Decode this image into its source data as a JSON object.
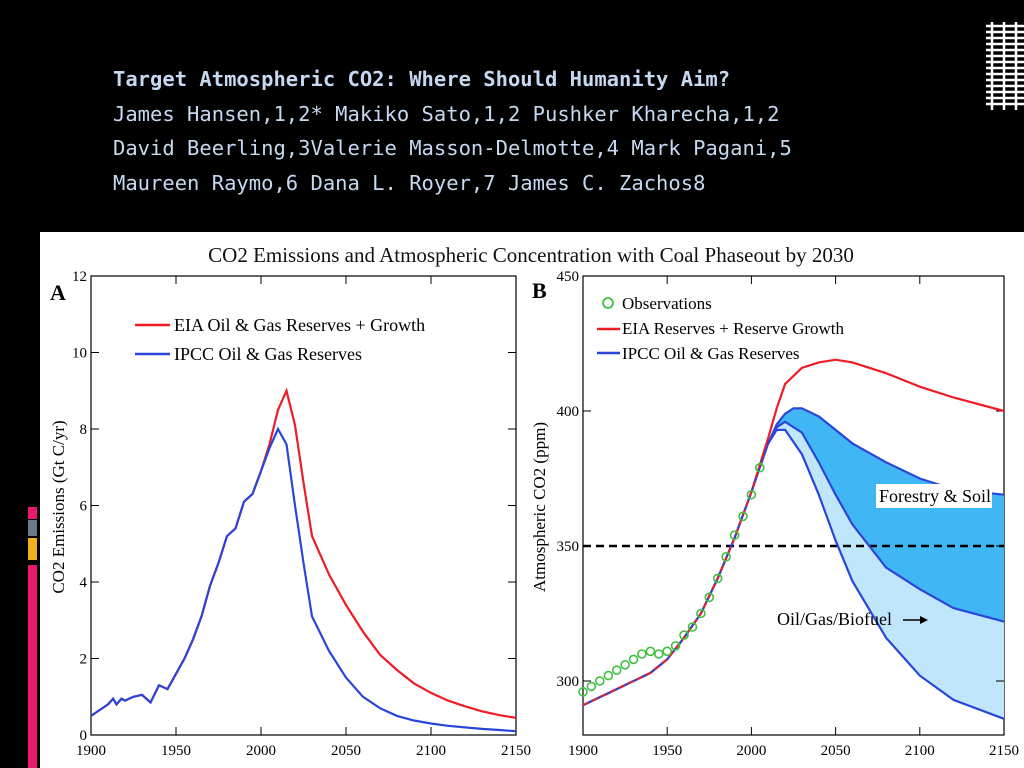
{
  "header": {
    "title": "Target Atmospheric CO2: Where Should Humanity Aim?",
    "authors": [
      "James Hansen,1,2* Makiko Sato,1,2 Pushker Kharecha,1,2",
      "David Beerling,3Valerie Masson-Delmotte,4 Mark Pagani,5",
      "Maureen Raymo,6 Dana L. Royer,7 James C. Zachos8"
    ]
  },
  "colors": {
    "red": "#ee1c25",
    "blue": "#2a46d8",
    "obs": "#3fbf3f",
    "band_dark": "#41b6f5",
    "band_light": "#bfe6fb",
    "title_text": "#c6d9f1"
  },
  "chart_data": [
    {
      "type": "line",
      "figure_title": "CO2 Emissions and Atmospheric Concentration with Coal Phaseout by 2030",
      "panel": "A",
      "ylabel": "CO2 Emissions (Gt C/yr)",
      "xlim": [
        1900,
        2150
      ],
      "ylim": [
        0,
        12
      ],
      "xticks": [
        "1900",
        "1950",
        "2000",
        "2050",
        "2100",
        "2150"
      ],
      "yticks": [
        "0",
        "2",
        "4",
        "6",
        "8",
        "10",
        "12"
      ],
      "legend": "top-left",
      "series": [
        {
          "name": "EIA Oil & Gas Reserves + Growth",
          "color": "red",
          "x": [
            1900,
            1905,
            1910,
            1913,
            1915,
            1918,
            1920,
            1925,
            1930,
            1935,
            1940,
            1945,
            1950,
            1955,
            1960,
            1965,
            1970,
            1975,
            1980,
            1985,
            1990,
            1995,
            2000,
            2005,
            2010,
            2015,
            2020,
            2025,
            2030,
            2040,
            2050,
            2060,
            2070,
            2080,
            2090,
            2100,
            2110,
            2120,
            2130,
            2140,
            2150
          ],
          "y": [
            0.5,
            0.65,
            0.8,
            0.95,
            0.8,
            0.95,
            0.9,
            1.0,
            1.05,
            0.85,
            1.3,
            1.2,
            1.6,
            2.0,
            2.5,
            3.1,
            3.9,
            4.5,
            5.2,
            5.4,
            6.1,
            6.3,
            6.9,
            7.6,
            8.5,
            9.0,
            8.1,
            6.6,
            5.2,
            4.2,
            3.4,
            2.7,
            2.1,
            1.7,
            1.35,
            1.1,
            0.9,
            0.75,
            0.62,
            0.52,
            0.45
          ]
        },
        {
          "name": "IPCC Oil & Gas Reserves",
          "color": "blue",
          "x": [
            1900,
            1905,
            1910,
            1913,
            1915,
            1918,
            1920,
            1925,
            1930,
            1935,
            1940,
            1945,
            1950,
            1955,
            1960,
            1965,
            1970,
            1975,
            1980,
            1985,
            1990,
            1995,
            2000,
            2005,
            2010,
            2015,
            2020,
            2025,
            2030,
            2040,
            2050,
            2060,
            2070,
            2080,
            2090,
            2100,
            2110,
            2120,
            2130,
            2140,
            2150
          ],
          "y": [
            0.5,
            0.65,
            0.8,
            0.95,
            0.8,
            0.95,
            0.9,
            1.0,
            1.05,
            0.85,
            1.3,
            1.2,
            1.6,
            2.0,
            2.5,
            3.1,
            3.9,
            4.5,
            5.2,
            5.4,
            6.1,
            6.3,
            6.9,
            7.5,
            8.0,
            7.6,
            6.0,
            4.5,
            3.1,
            2.2,
            1.5,
            1.0,
            0.7,
            0.5,
            0.38,
            0.3,
            0.24,
            0.2,
            0.16,
            0.13,
            0.1
          ]
        }
      ]
    },
    {
      "type": "line",
      "panel": "B",
      "ylabel": "Atmospheric CO2 (ppm)",
      "xlim": [
        1900,
        2150
      ],
      "ylim": [
        280,
        450
      ],
      "xticks": [
        "1900",
        "1950",
        "2000",
        "2050",
        "2100",
        "2150"
      ],
      "yticks": [
        "300",
        "350",
        "400",
        "450"
      ],
      "legend": "top-left",
      "reference_line": {
        "y": 350,
        "style": "dashed"
      },
      "annotations": [
        "Forestry & Soil",
        "Oil/Gas/Biofuel"
      ],
      "series": [
        {
          "name": "Observations",
          "color": "obs",
          "marker": "circle",
          "x": [
            1900,
            1905,
            1910,
            1915,
            1920,
            1925,
            1930,
            1935,
            1940,
            1945,
            1950,
            1955,
            1960,
            1965,
            1970,
            1975,
            1980,
            1985,
            1990,
            1995,
            2000,
            2005
          ],
          "y": [
            296,
            298,
            300,
            302,
            304,
            306,
            308,
            310,
            311,
            310,
            311,
            313,
            317,
            320,
            325,
            331,
            338,
            346,
            354,
            361,
            369,
            379
          ]
        },
        {
          "name": "EIA Reserves + Reserve Growth",
          "color": "red",
          "x": [
            1900,
            1920,
            1940,
            1950,
            1960,
            1970,
            1980,
            1990,
            2000,
            2010,
            2015,
            2020,
            2030,
            2040,
            2050,
            2060,
            2080,
            2100,
            2120,
            2150
          ],
          "y": [
            291,
            297,
            303,
            308,
            316,
            325,
            338,
            353,
            370,
            390,
            401,
            410,
            416,
            418,
            419,
            418,
            414,
            409,
            405,
            400
          ]
        },
        {
          "name": "IPCC Oil & Gas Reserves",
          "color": "blue",
          "x": [
            1900,
            1920,
            1940,
            1950,
            1960,
            1970,
            1980,
            1990,
            2000,
            2010,
            2015,
            2020,
            2025,
            2030,
            2040,
            2050,
            2060,
            2080,
            2100,
            2120,
            2150
          ],
          "y": [
            291,
            297,
            303,
            308,
            316,
            325,
            338,
            353,
            370,
            388,
            395,
            399,
            401,
            401,
            398,
            393,
            388,
            381,
            375,
            371,
            369
          ]
        },
        {
          "name": "Forestry & Soil lower bound",
          "color": "blue",
          "x": [
            2010,
            2015,
            2020,
            2030,
            2040,
            2050,
            2060,
            2080,
            2100,
            2120,
            2150
          ],
          "y": [
            388,
            394,
            396,
            392,
            381,
            369,
            358,
            342,
            334,
            327,
            322
          ]
        },
        {
          "name": "Oil/Gas/Biofuel lower bound",
          "color": "blue",
          "x": [
            2010,
            2015,
            2020,
            2030,
            2040,
            2050,
            2060,
            2080,
            2100,
            2120,
            2150
          ],
          "y": [
            388,
            393,
            393,
            384,
            369,
            352,
            337,
            316,
            302,
            293,
            286
          ]
        }
      ]
    }
  ]
}
